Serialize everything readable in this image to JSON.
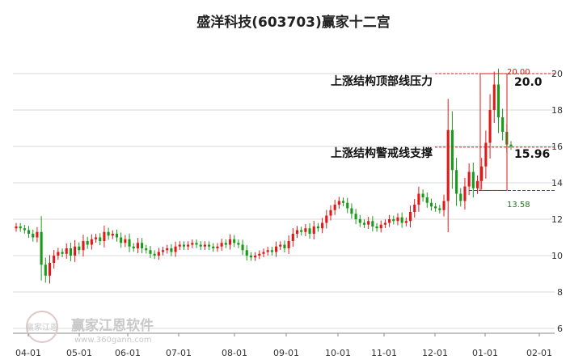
{
  "colors": {
    "up": "#e01a1a",
    "down": "#1a9a1a",
    "grid": "#d9d9d9",
    "resistance": "#e01a1a",
    "support": "#1a7a1a",
    "box": "#e01a1a"
  },
  "watermark": {
    "logo_text": "赢家江恩",
    "brand": "赢家江恩软件",
    "url": "www.360gann.com"
  },
  "annotations": {
    "resistance_label": "上涨结构顶部线压力",
    "resistance_value": "20.0",
    "support_label": "上涨结构警戒线支撑",
    "support_value": "15.96",
    "box_top_label": "20.00",
    "box_bottom_label": "13.58"
  },
  "chart_data": {
    "type": "candlestick",
    "title": "盛洋科技(603703)赢家十二宫",
    "ylim": [
      6,
      21.5
    ],
    "y_ticks": [
      6,
      8,
      10,
      12,
      14,
      16,
      18,
      20
    ],
    "y_tick_labels": [
      "6",
      "8",
      "10",
      "12",
      "14",
      "16",
      "18",
      "20"
    ],
    "x_tick_labels": [
      "04-01",
      "05-01",
      "06-01",
      "07-01",
      "08-01",
      "09-01",
      "10-01",
      "11-01",
      "12-01",
      "01-01",
      "02-01"
    ],
    "grid": true,
    "levels": {
      "resistance": 20.0,
      "support": 15.96,
      "box_top": 20.0,
      "box_bottom": 13.58
    },
    "closes": [
      11.6,
      11.5,
      11.4,
      11.2,
      11.0,
      11.3,
      9.5,
      8.9,
      9.6,
      10.0,
      10.2,
      10.1,
      10.4,
      10.0,
      10.5,
      10.3,
      10.8,
      10.6,
      10.9,
      11.0,
      10.8,
      11.3,
      11.1,
      11.2,
      11.0,
      10.7,
      10.9,
      10.5,
      10.4,
      10.7,
      10.4,
      10.3,
      10.1,
      10.0,
      10.2,
      10.3,
      10.4,
      10.2,
      10.5,
      10.6,
      10.5,
      10.6,
      10.7,
      10.6,
      10.5,
      10.6,
      10.5,
      10.4,
      10.5,
      10.7,
      10.6,
      10.9,
      10.7,
      10.6,
      10.3,
      10.0,
      9.9,
      10.0,
      10.1,
      10.2,
      10.3,
      10.2,
      10.5,
      10.6,
      10.4,
      10.8,
      11.2,
      11.4,
      11.3,
      11.5,
      11.2,
      11.6,
      11.5,
      11.8,
      12.2,
      12.5,
      12.8,
      13.0,
      12.9,
      12.6,
      12.3,
      12.0,
      11.8,
      11.7,
      11.9,
      11.6,
      11.5,
      11.7,
      11.8,
      12.0,
      11.9,
      12.1,
      11.8,
      11.9,
      12.4,
      12.8,
      13.4,
      13.2,
      12.9,
      12.7,
      12.6,
      12.5,
      13.0,
      16.9,
      14.7,
      13.4,
      13.0,
      13.8,
      14.6,
      13.7,
      14.1,
      14.9,
      16.2,
      18.0,
      19.4,
      17.6,
      16.8,
      16.1,
      16.0
    ]
  }
}
